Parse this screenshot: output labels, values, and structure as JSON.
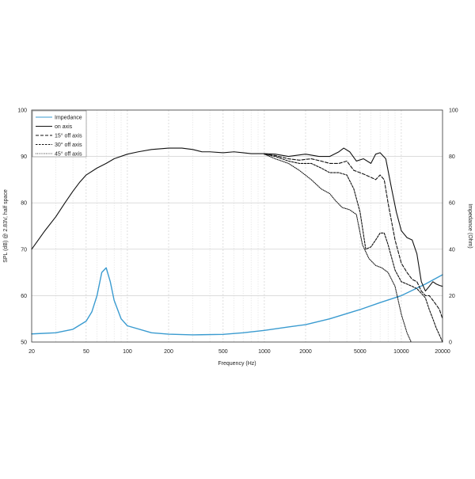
{
  "chart_data": {
    "type": "line",
    "xlabel": "Frequency (Hz)",
    "ylabel_left": "SPL (dB) @ 2.83V, half space",
    "ylabel_right": "Impedance (Ohm)",
    "x_scale": "log",
    "xlim": [
      20,
      20000
    ],
    "ylim_left": [
      50,
      100
    ],
    "ylim_right": [
      0,
      100
    ],
    "x_ticks": [
      20,
      50,
      100,
      200,
      500,
      1000,
      2000,
      5000,
      10000,
      20000
    ],
    "x_tick_labels": [
      "20",
      "50",
      "100",
      "200",
      "500",
      "1000",
      "2000",
      "5000",
      "10000",
      "20000"
    ],
    "y_ticks_left": [
      50,
      60,
      70,
      80,
      90,
      100
    ],
    "y_ticks_right": [
      0,
      20,
      40,
      60,
      80,
      100
    ],
    "grid": true,
    "legend_position": "top-left",
    "legend": [
      {
        "label": "Impedance",
        "style": "solid",
        "color": "#3a9bd0"
      },
      {
        "label": "on axis",
        "style": "solid",
        "color": "#111111"
      },
      {
        "label": "15° off axis",
        "style": "dashed-long",
        "color": "#111111"
      },
      {
        "label": "30° off axis",
        "style": "dashed-short",
        "color": "#111111"
      },
      {
        "label": "45° off axis",
        "style": "dotted",
        "color": "#111111"
      }
    ],
    "series": [
      {
        "name": "Impedance",
        "axis": "right",
        "color": "#3a9bd0",
        "style": "solid",
        "x": [
          20,
          30,
          40,
          50,
          55,
          60,
          65,
          70,
          75,
          80,
          90,
          100,
          150,
          200,
          300,
          500,
          700,
          1000,
          1500,
          2000,
          3000,
          5000,
          7000,
          10000,
          15000,
          20000
        ],
        "y": [
          3.5,
          4,
          5.5,
          9,
          13,
          20,
          30,
          32,
          26,
          18,
          10,
          7,
          4,
          3.4,
          3.1,
          3.3,
          4,
          5,
          6.5,
          7.5,
          10,
          14,
          17,
          20,
          25,
          29
        ]
      },
      {
        "name": "on axis",
        "axis": "left",
        "color": "#111111",
        "style": "solid",
        "x": [
          20,
          25,
          30,
          35,
          40,
          45,
          50,
          60,
          70,
          80,
          100,
          120,
          150,
          200,
          250,
          300,
          350,
          400,
          500,
          600,
          700,
          800,
          1000,
          1200,
          1500,
          2000,
          2500,
          3000,
          3500,
          3800,
          4200,
          4700,
          5300,
          6000,
          6500,
          7000,
          7700,
          8500,
          9200,
          10000,
          11000,
          12000,
          13000,
          14000,
          15000,
          16000,
          17000,
          18000,
          19000,
          20000
        ],
        "y": [
          70,
          74,
          77,
          80,
          82.5,
          84.5,
          86,
          87.5,
          88.5,
          89.5,
          90.5,
          91,
          91.5,
          91.8,
          91.8,
          91.5,
          91,
          91,
          90.8,
          91,
          90.8,
          90.6,
          90.6,
          90.5,
          90,
          90.5,
          90,
          90,
          91,
          91.8,
          91,
          89,
          89.5,
          88.5,
          90.5,
          90.8,
          89.5,
          83,
          78,
          74,
          72.5,
          72,
          69,
          63,
          61,
          62,
          63,
          62.5,
          62.2,
          62
        ]
      },
      {
        "name": "15° off axis",
        "axis": "left",
        "color": "#111111",
        "style": "dashed-long",
        "x": [
          1000,
          1200,
          1500,
          1800,
          2200,
          2600,
          3000,
          3500,
          4000,
          4500,
          5000,
          5500,
          6000,
          6500,
          7000,
          7500,
          8000,
          9000,
          10000,
          11000,
          12000,
          13000,
          14000,
          15000,
          16000,
          17000,
          18000,
          19000,
          20000
        ],
        "y": [
          90.5,
          90.2,
          89.5,
          89.2,
          89.5,
          89,
          88.5,
          88.5,
          89,
          87,
          86.5,
          86,
          85.5,
          85,
          86,
          85,
          80,
          72,
          67,
          65,
          63.5,
          63,
          61,
          60,
          60,
          59,
          58,
          57,
          55
        ]
      },
      {
        "name": "30° off axis",
        "axis": "left",
        "color": "#111111",
        "style": "dashed-short",
        "x": [
          1000,
          1200,
          1500,
          1800,
          2200,
          2600,
          3000,
          3500,
          4000,
          4500,
          5000,
          5500,
          6000,
          6500,
          7000,
          7500,
          8000,
          9000,
          10000,
          11000,
          12000,
          13000,
          14000,
          15000,
          16000,
          17000,
          18000,
          19000,
          20000
        ],
        "y": [
          90.5,
          90,
          89,
          88.5,
          88.5,
          87.5,
          86.5,
          86.5,
          86,
          83,
          78,
          70,
          70.5,
          72,
          73.5,
          73.5,
          71,
          65.5,
          63,
          62.5,
          62,
          61.5,
          60.5,
          59.5,
          57,
          55,
          53,
          51.5,
          50
        ]
      },
      {
        "name": "45° off axis",
        "axis": "left",
        "color": "#111111",
        "style": "dotted",
        "x": [
          1000,
          1200,
          1500,
          1800,
          2200,
          2600,
          3000,
          3300,
          3700,
          4200,
          4700,
          5200,
          5800,
          6500,
          7200,
          8000,
          9000,
          10000,
          11000,
          11800
        ],
        "y": [
          90.5,
          89.5,
          88.5,
          87,
          85,
          83,
          82,
          80.5,
          79,
          78.5,
          77.5,
          71,
          68,
          66.5,
          66,
          65,
          62,
          56,
          52,
          50
        ]
      }
    ]
  }
}
